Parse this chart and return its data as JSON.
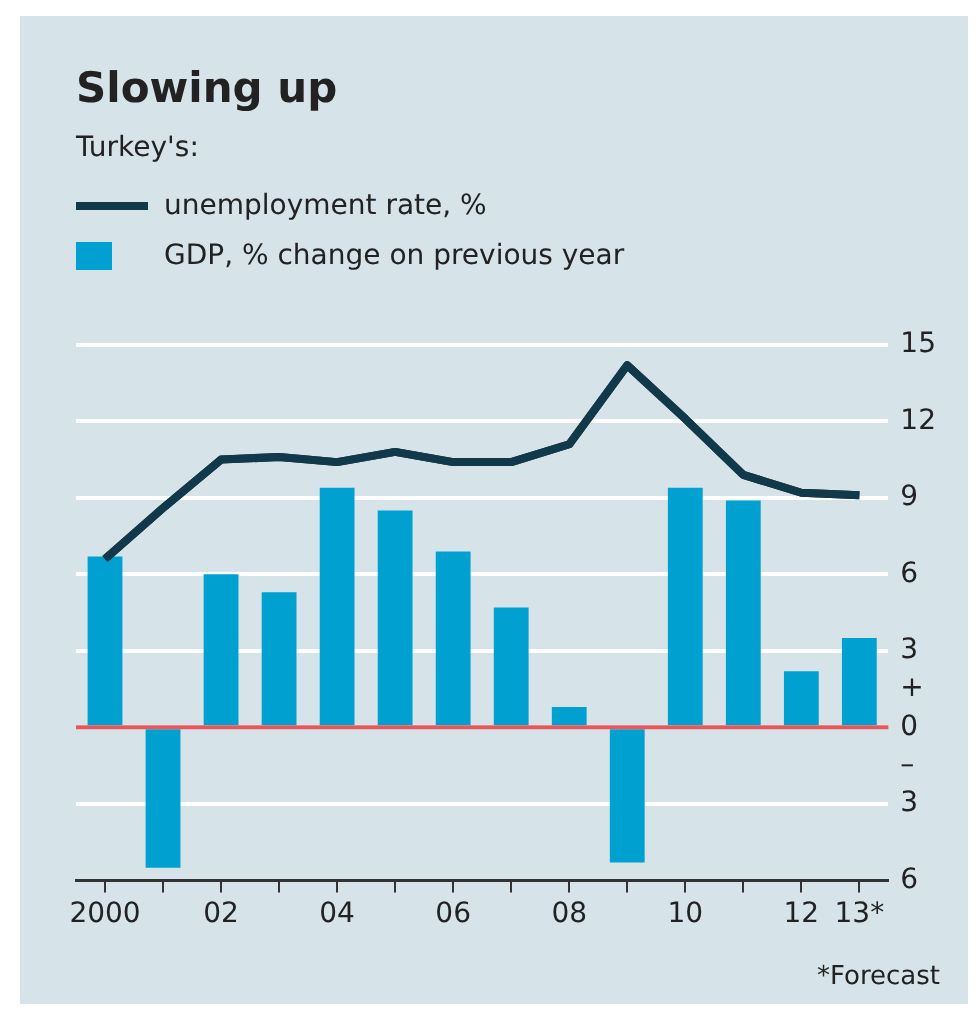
{
  "chart_data": {
    "type": "bar",
    "title": "Slowing up",
    "subtitle": "Turkey's:",
    "categories": [
      "2000",
      null,
      "02",
      null,
      "04",
      null,
      "06",
      null,
      "08",
      null,
      "10",
      null,
      "12",
      "13*"
    ],
    "series": [
      {
        "name": "unemployment rate, %",
        "type": "line",
        "color": "#12394a",
        "values": [
          6.6,
          8.6,
          10.5,
          10.6,
          10.4,
          10.8,
          10.4,
          10.4,
          11.1,
          14.2,
          12.1,
          9.9,
          9.2,
          9.1
        ]
      },
      {
        "name": "GDP, % change on previous year",
        "color": "#00a1d0",
        "values": [
          6.7,
          -5.5,
          6.0,
          5.3,
          9.4,
          8.5,
          6.9,
          4.7,
          0.8,
          -5.3,
          9.4,
          8.9,
          2.2,
          3.5
        ]
      }
    ],
    "ylim": [
      -6,
      15
    ],
    "yticks": [
      {
        "value": -6,
        "label": "6"
      },
      {
        "value": -3,
        "label": "3"
      },
      {
        "value": -1.5,
        "label": "–"
      },
      0,
      {
        "value": 1.5,
        "label": "+"
      },
      3,
      6,
      9,
      12,
      15
    ],
    "ref_lines": [
      {
        "axis": "y",
        "value": 0,
        "color": "#e8585a"
      }
    ],
    "grid": "y",
    "legend": "top left",
    "marker": "none",
    "line_style": "solid",
    "annotations": [
      "*Forecast"
    ]
  }
}
